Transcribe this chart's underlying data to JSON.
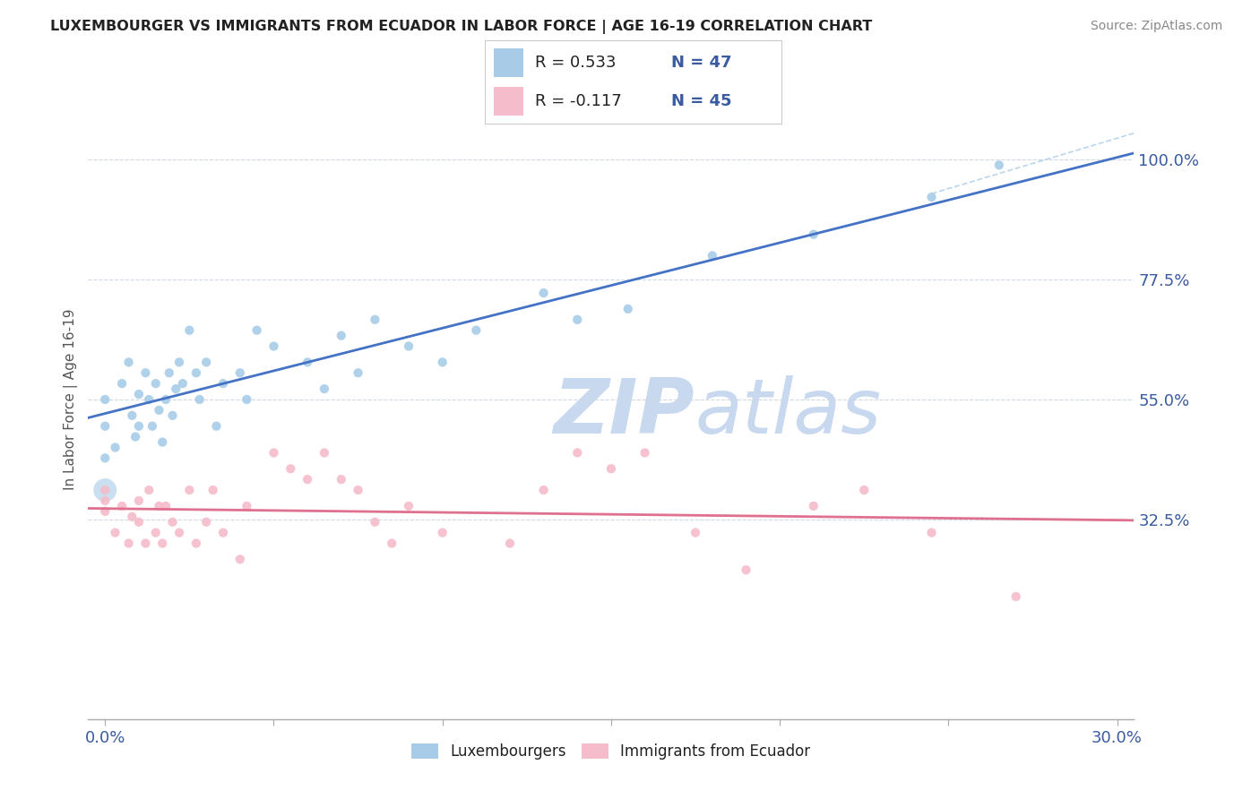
{
  "title": "LUXEMBOURGER VS IMMIGRANTS FROM ECUADOR IN LABOR FORCE | AGE 16-19 CORRELATION CHART",
  "source": "Source: ZipAtlas.com",
  "ylabel": "In Labor Force | Age 16-19",
  "xlim": [
    -0.005,
    0.305
  ],
  "ylim": [
    -0.05,
    1.15
  ],
  "ytick_values": [
    0.325,
    0.55,
    0.775,
    1.0
  ],
  "ytick_labels": [
    "32.5%",
    "55.0%",
    "77.5%",
    "100.0%"
  ],
  "xtick_values": [
    0.0,
    0.05,
    0.1,
    0.15,
    0.2,
    0.25,
    0.3
  ],
  "blue_R": 0.533,
  "blue_N": 47,
  "pink_R": -0.117,
  "pink_N": 45,
  "blue_color": "#a8cce8",
  "pink_color": "#f5bccb",
  "trend_blue": "#4472c4",
  "trend_pink": "#e07090",
  "grid_color": "#d0d8e8",
  "title_color": "#222222",
  "label_color": "#3a5ba0",
  "watermark_color": "#c8d8ee",
  "blue_scatter_x": [
    0.0,
    0.0,
    0.0,
    0.003,
    0.005,
    0.007,
    0.008,
    0.009,
    0.01,
    0.01,
    0.012,
    0.013,
    0.014,
    0.015,
    0.016,
    0.017,
    0.018,
    0.019,
    0.02,
    0.021,
    0.022,
    0.023,
    0.025,
    0.027,
    0.028,
    0.03,
    0.033,
    0.035,
    0.04,
    0.042,
    0.045,
    0.05,
    0.06,
    0.065,
    0.07,
    0.075,
    0.08,
    0.09,
    0.1,
    0.11,
    0.13,
    0.14,
    0.155,
    0.18,
    0.21,
    0.245,
    0.265
  ],
  "blue_scatter_y": [
    0.44,
    0.5,
    0.55,
    0.46,
    0.58,
    0.62,
    0.52,
    0.48,
    0.56,
    0.5,
    0.6,
    0.55,
    0.5,
    0.58,
    0.53,
    0.47,
    0.55,
    0.6,
    0.52,
    0.57,
    0.62,
    0.58,
    0.68,
    0.6,
    0.55,
    0.62,
    0.5,
    0.58,
    0.6,
    0.55,
    0.68,
    0.65,
    0.62,
    0.57,
    0.67,
    0.6,
    0.7,
    0.65,
    0.62,
    0.68,
    0.75,
    0.7,
    0.72,
    0.82,
    0.86,
    0.93,
    0.99
  ],
  "pink_scatter_x": [
    0.0,
    0.0,
    0.0,
    0.003,
    0.005,
    0.007,
    0.008,
    0.01,
    0.01,
    0.012,
    0.013,
    0.015,
    0.016,
    0.017,
    0.018,
    0.02,
    0.022,
    0.025,
    0.027,
    0.03,
    0.032,
    0.035,
    0.04,
    0.042,
    0.05,
    0.055,
    0.06,
    0.065,
    0.07,
    0.075,
    0.08,
    0.085,
    0.09,
    0.1,
    0.12,
    0.13,
    0.14,
    0.15,
    0.16,
    0.175,
    0.19,
    0.21,
    0.225,
    0.245,
    0.27
  ],
  "pink_scatter_y": [
    0.36,
    0.38,
    0.34,
    0.3,
    0.35,
    0.28,
    0.33,
    0.36,
    0.32,
    0.28,
    0.38,
    0.3,
    0.35,
    0.28,
    0.35,
    0.32,
    0.3,
    0.38,
    0.28,
    0.32,
    0.38,
    0.3,
    0.25,
    0.35,
    0.45,
    0.42,
    0.4,
    0.45,
    0.4,
    0.38,
    0.32,
    0.28,
    0.35,
    0.3,
    0.28,
    0.38,
    0.45,
    0.42,
    0.45,
    0.3,
    0.23,
    0.35,
    0.38,
    0.3,
    0.18
  ],
  "figsize": [
    14.06,
    8.92
  ],
  "dpi": 100
}
